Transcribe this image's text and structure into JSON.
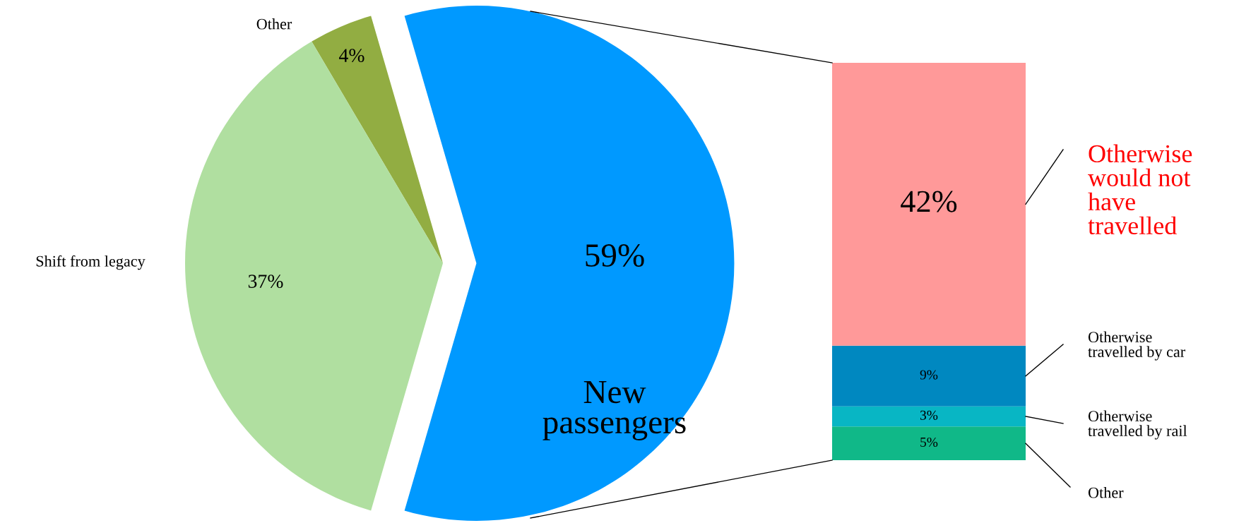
{
  "chart_data": [
    {
      "type": "pie",
      "categories": [
        "New passengers",
        "Other",
        "Shift from legacy"
      ],
      "values": [
        59,
        4,
        37
      ],
      "value_labels": [
        "59%",
        "4%",
        "37%"
      ],
      "colors": [
        "#0099ff",
        "#92ad42",
        "#b0dfa0"
      ],
      "legend": false
    },
    {
      "type": "bar",
      "stacked": true,
      "categories": [
        null
      ],
      "data_labels": false,
      "legend": false,
      "series": [
        {
          "name": "Other",
          "color": "#10b888",
          "values": [
            5
          ],
          "value_labels": [
            "5%"
          ]
        },
        {
          "name": "Otherwise\ntravelled by rail",
          "color": "#08b6c4",
          "values": [
            3
          ],
          "value_labels": [
            "3%"
          ]
        },
        {
          "name": "Otherwise\ntravelled by car",
          "color": "#0088c0",
          "values": [
            9
          ],
          "value_labels": [
            "9%"
          ]
        },
        {
          "name": "Otherwise\nwould not\nhave\ntravelled",
          "color": "#ff9999",
          "values": [
            42
          ],
          "value_labels": [
            "42%"
          ]
        }
      ]
    }
  ]
}
